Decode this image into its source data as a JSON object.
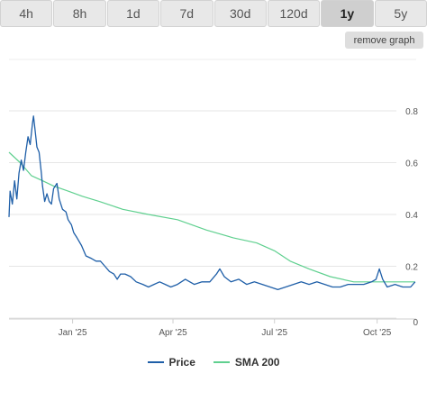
{
  "tabs": [
    {
      "label": "4h",
      "active": false
    },
    {
      "label": "8h",
      "active": false
    },
    {
      "label": "1d",
      "active": false
    },
    {
      "label": "7d",
      "active": false
    },
    {
      "label": "30d",
      "active": false
    },
    {
      "label": "120d",
      "active": false
    },
    {
      "label": "1y",
      "active": true
    },
    {
      "label": "5y",
      "active": false
    }
  ],
  "remove_graph_label": "remove graph",
  "legend": [
    {
      "label": "Price",
      "color": "#1f5fa8"
    },
    {
      "label": "SMA 200",
      "color": "#5fd08f"
    }
  ],
  "chart_data": {
    "type": "line",
    "x_tick_labels": [
      "Jan '25",
      "Apr '25",
      "Jul '25",
      "Oct '25"
    ],
    "y_tick_labels": [
      "0",
      "0.2",
      "0.4",
      "0.6",
      "0.8"
    ],
    "ylim": [
      0,
      0.85
    ],
    "grid": "horizontal",
    "y_axis_side": "right",
    "legend_placement": "bottom-center",
    "series": [
      {
        "name": "Price",
        "color": "#1f5fa8",
        "x": [
          "2024-11-05",
          "2024-11-06",
          "2024-11-08",
          "2024-11-10",
          "2024-11-12",
          "2024-11-14",
          "2024-11-16",
          "2024-11-18",
          "2024-11-20",
          "2024-11-22",
          "2024-11-24",
          "2024-11-26",
          "2024-11-27",
          "2024-11-28",
          "2024-11-30",
          "2024-12-02",
          "2024-12-04",
          "2024-12-05",
          "2024-12-07",
          "2024-12-09",
          "2024-12-11",
          "2024-12-13",
          "2024-12-15",
          "2024-12-18",
          "2024-12-20",
          "2024-12-23",
          "2024-12-26",
          "2024-12-28",
          "2024-12-31",
          "2025-01-02",
          "2025-01-05",
          "2025-01-09",
          "2025-01-13",
          "2025-01-18",
          "2025-01-22",
          "2025-01-26",
          "2025-01-30",
          "2025-02-03",
          "2025-02-07",
          "2025-02-10",
          "2025-02-13",
          "2025-02-17",
          "2025-02-22",
          "2025-02-27",
          "2025-03-05",
          "2025-03-10",
          "2025-03-15",
          "2025-03-20",
          "2025-03-25",
          "2025-03-30",
          "2025-04-05",
          "2025-04-12",
          "2025-04-20",
          "2025-04-27",
          "2025-05-04",
          "2025-05-10",
          "2025-05-13",
          "2025-05-17",
          "2025-05-23",
          "2025-05-30",
          "2025-06-06",
          "2025-06-13",
          "2025-06-20",
          "2025-06-27",
          "2025-07-04",
          "2025-07-11",
          "2025-07-18",
          "2025-07-25",
          "2025-08-01",
          "2025-08-08",
          "2025-08-15",
          "2025-08-22",
          "2025-08-29",
          "2025-09-05",
          "2025-09-12",
          "2025-09-19",
          "2025-09-26",
          "2025-09-30",
          "2025-10-03",
          "2025-10-06",
          "2025-10-10",
          "2025-10-17",
          "2025-10-24",
          "2025-10-31",
          "2025-11-04"
        ],
        "y": [
          0.39,
          0.49,
          0.44,
          0.53,
          0.46,
          0.56,
          0.61,
          0.57,
          0.64,
          0.7,
          0.67,
          0.75,
          0.78,
          0.74,
          0.66,
          0.64,
          0.56,
          0.51,
          0.45,
          0.48,
          0.45,
          0.44,
          0.5,
          0.52,
          0.46,
          0.42,
          0.41,
          0.38,
          0.36,
          0.33,
          0.31,
          0.28,
          0.24,
          0.23,
          0.22,
          0.22,
          0.2,
          0.18,
          0.17,
          0.15,
          0.17,
          0.17,
          0.16,
          0.14,
          0.13,
          0.12,
          0.13,
          0.14,
          0.13,
          0.12,
          0.13,
          0.15,
          0.13,
          0.14,
          0.14,
          0.17,
          0.19,
          0.16,
          0.14,
          0.15,
          0.13,
          0.14,
          0.13,
          0.12,
          0.11,
          0.12,
          0.13,
          0.14,
          0.13,
          0.14,
          0.13,
          0.12,
          0.12,
          0.13,
          0.13,
          0.13,
          0.14,
          0.15,
          0.19,
          0.15,
          0.12,
          0.13,
          0.12,
          0.12,
          0.14
        ]
      },
      {
        "name": "SMA 200",
        "color": "#5fd08f",
        "x": [
          "2024-11-05",
          "2024-11-15",
          "2024-11-25",
          "2024-12-05",
          "2024-12-15",
          "2024-12-28",
          "2025-01-10",
          "2025-01-25",
          "2025-02-15",
          "2025-03-10",
          "2025-04-05",
          "2025-05-01",
          "2025-05-25",
          "2025-06-15",
          "2025-07-01",
          "2025-07-15",
          "2025-08-01",
          "2025-08-20",
          "2025-09-10",
          "2025-10-01",
          "2025-10-20",
          "2025-11-04"
        ],
        "y": [
          0.64,
          0.6,
          0.55,
          0.53,
          0.51,
          0.49,
          0.47,
          0.45,
          0.42,
          0.4,
          0.38,
          0.34,
          0.31,
          0.29,
          0.26,
          0.22,
          0.19,
          0.16,
          0.14,
          0.14,
          0.14,
          0.14
        ]
      }
    ]
  }
}
